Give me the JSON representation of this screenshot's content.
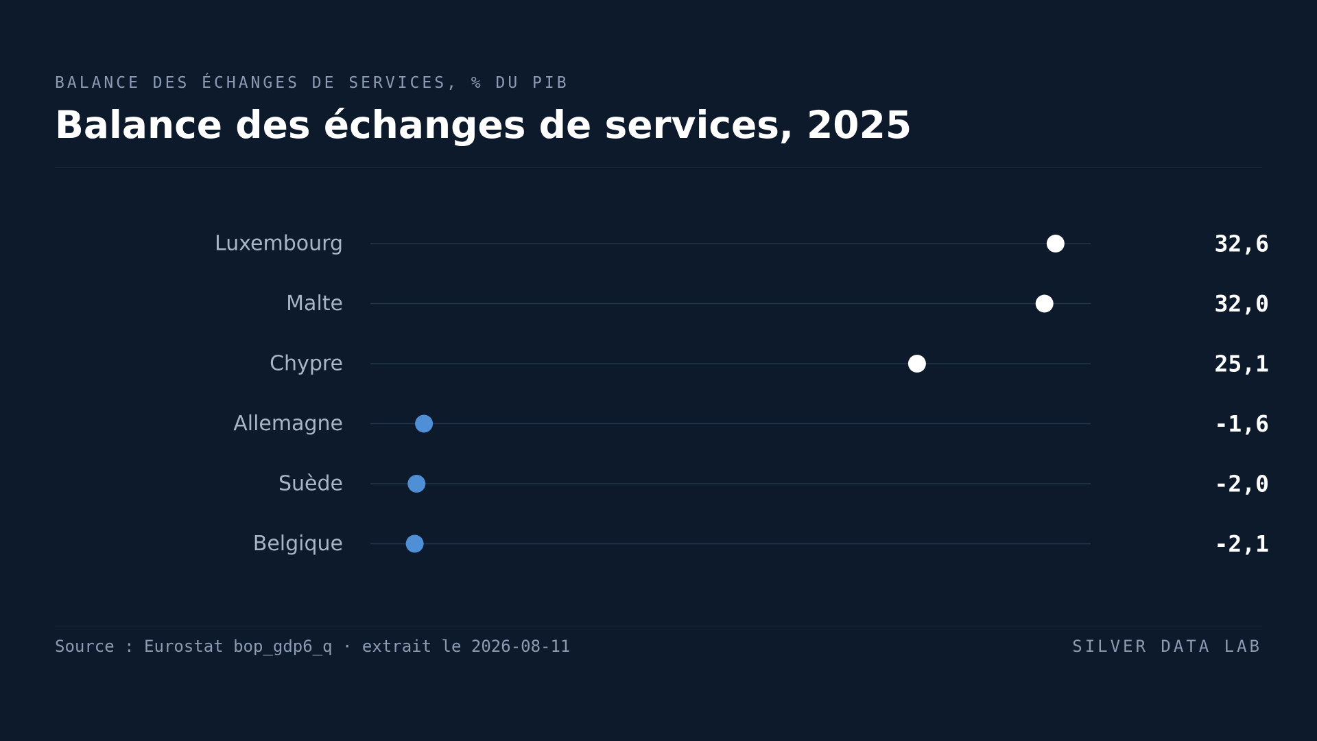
{
  "header": {
    "kicker": "BALANCE DES ÉCHANGES DE SERVICES, % DU PIB",
    "title": "Balance des échanges de services, 2025"
  },
  "footer": {
    "source": "Source : Eurostat bop_gdp6_q · extrait le 2026-08-11",
    "brand": "SILVER DATA LAB"
  },
  "colors": {
    "background": "#0d1a2b",
    "positive": "#ffffff",
    "negative": "#4f8fd6",
    "track": "#24364d",
    "label": "#a8b5c8",
    "value": "#ffffff"
  },
  "chart_data": {
    "type": "dot",
    "xlim": [
      -4.5,
      34.5
    ],
    "grid": false,
    "categories": [
      "Luxembourg",
      "Malte",
      "Chypre",
      "Allemagne",
      "Suède",
      "Belgique"
    ],
    "values": [
      32.6,
      32.0,
      25.1,
      -1.6,
      -2.0,
      -2.1
    ],
    "value_labels": [
      "32,6",
      "32,0",
      "25,1",
      "-1,6",
      "-2,0",
      "-2,1"
    ]
  }
}
